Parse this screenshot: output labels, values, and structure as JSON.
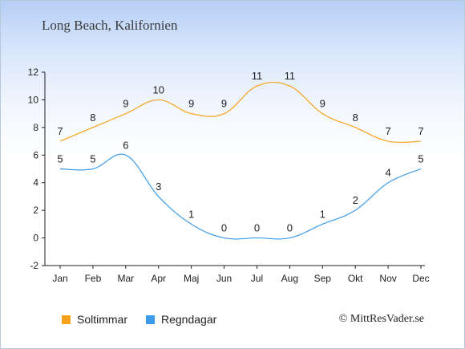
{
  "title": "Long Beach, Kalifornien",
  "chart_data": {
    "type": "line",
    "categories": [
      "Jan",
      "Feb",
      "Mar",
      "Apr",
      "Maj",
      "Jun",
      "Jul",
      "Aug",
      "Sep",
      "Okt",
      "Nov",
      "Dec"
    ],
    "series": [
      {
        "name": "Soltimmar",
        "color": "#f7a21b",
        "values": [
          7,
          8,
          9,
          10,
          9,
          9,
          11,
          11,
          9,
          8,
          7,
          7
        ]
      },
      {
        "name": "Regndagar",
        "color": "#3b9be8",
        "values": [
          5,
          5,
          6,
          3,
          1,
          0,
          0,
          0,
          1,
          2,
          4,
          5
        ]
      }
    ],
    "yticks": [
      -2,
      0,
      2,
      4,
      6,
      8,
      10,
      12
    ],
    "ylim": [
      -2,
      12
    ],
    "grid": false,
    "legend": "bottom-left"
  },
  "copyright": "© MittResVader.se"
}
